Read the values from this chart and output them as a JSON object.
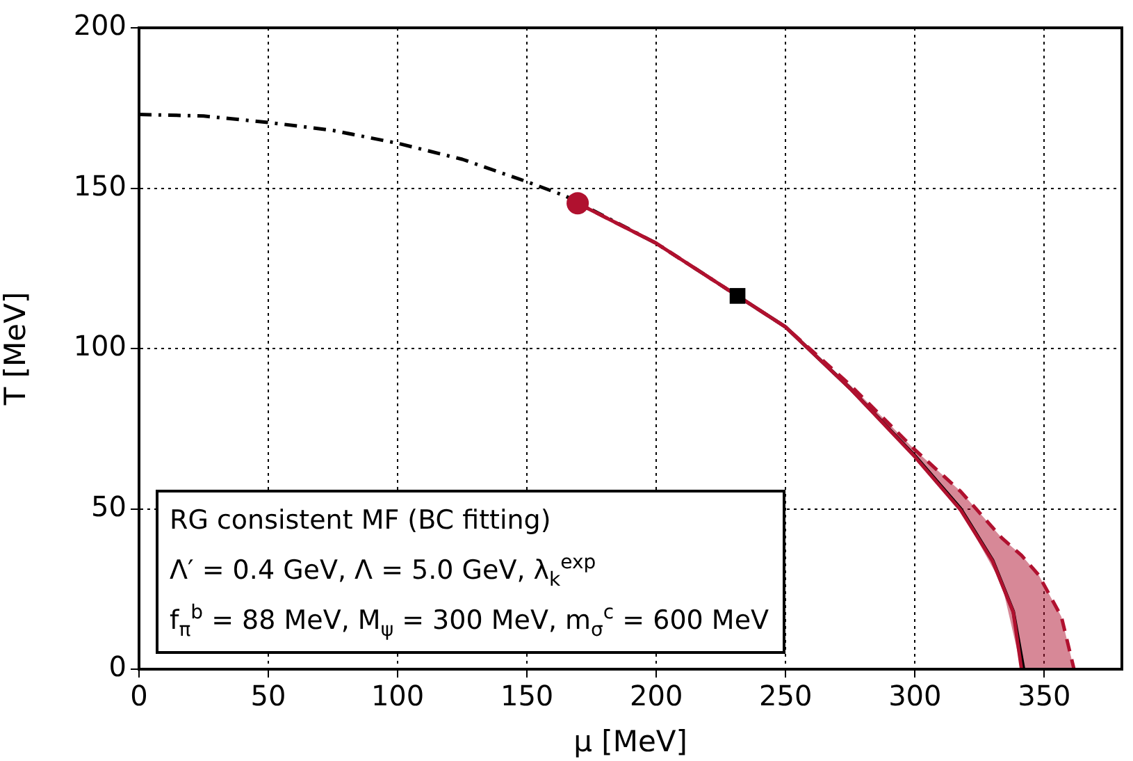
{
  "chart_data": {
    "type": "line",
    "xlabel": "μ [MeV]",
    "ylabel": "T [MeV]",
    "xlim": [
      0,
      380
    ],
    "xticks": [
      0,
      50,
      100,
      150,
      200,
      250,
      300,
      350
    ],
    "ylim": [
      0,
      200
    ],
    "yticks": [
      0,
      50,
      100,
      150,
      200
    ],
    "grid": true,
    "legend": false,
    "series": [
      {
        "type": "line",
        "color": "#000000",
        "line_style": "dashdot",
        "marker": "none",
        "x": [
          0,
          25,
          50,
          75,
          100,
          125,
          150,
          165,
          200,
          231.4
        ],
        "values": [
          173,
          172.5,
          170.5,
          168,
          164,
          159,
          152,
          147.5,
          132.8,
          116.4
        ]
      },
      {
        "type": "line",
        "color": "#000000",
        "line_style": "solid",
        "marker": "none",
        "x": [
          231.4,
          250,
          275,
          300,
          317.7,
          330,
          338,
          342
        ],
        "values": [
          116.4,
          106.7,
          87.5,
          66.5,
          50,
          34,
          18,
          0
        ]
      },
      {
        "type": "line",
        "color": "#b0112f",
        "line_style": "dashed",
        "marker": "none",
        "x": [
          169.6,
          200,
          231.4,
          250,
          275,
          300,
          317.7,
          333.6,
          341.2,
          347.8,
          356.6,
          361.5
        ],
        "values": [
          145.3,
          132.8,
          116.4,
          106.7,
          88.6,
          68.4,
          55.4,
          40.9,
          35.5,
          29.4,
          16.4,
          0
        ],
        "lower": [
          145.3,
          132.8,
          116.4,
          106.7,
          87.2,
          66.2,
          49.6,
          26.5,
          0,
          0,
          0,
          0
        ],
        "upper": [
          145.3,
          132.8,
          116.4,
          106.7,
          88.6,
          68.4,
          55.4,
          40.9,
          35.5,
          29.4,
          16.4,
          0
        ]
      },
      {
        "type": "line",
        "color": "#b0112f",
        "line_style": "solid",
        "marker": "none",
        "x": [
          169.6,
          200,
          231.4,
          250,
          275.3,
          300,
          317.7,
          330,
          338,
          341.2
        ],
        "values": [
          145.3,
          132.8,
          116.4,
          106.7,
          87.2,
          66.2,
          49.6,
          33.7,
          17.8,
          0
        ]
      },
      {
        "type": "scatter",
        "color": "#b0112f",
        "marker": "circle",
        "x": [
          169.6
        ],
        "values": [
          145.3
        ]
      },
      {
        "type": "scatter",
        "color": "#000000",
        "marker": "square",
        "x": [
          231.4
        ],
        "values": [
          116.4
        ]
      }
    ],
    "annotations": [
      "RG consistent MF (BC fitting)",
      "Λ′ = 0.4 GeV, Λ = 5.0 GeV, λ$_{k}$$^{exp}$",
      "f$_{π}$$^{b}$ = 88 MeV, M$_{ψ}$ = 300 MeV, m$_{σ}$$^{c}$ = 600 MeV"
    ]
  }
}
